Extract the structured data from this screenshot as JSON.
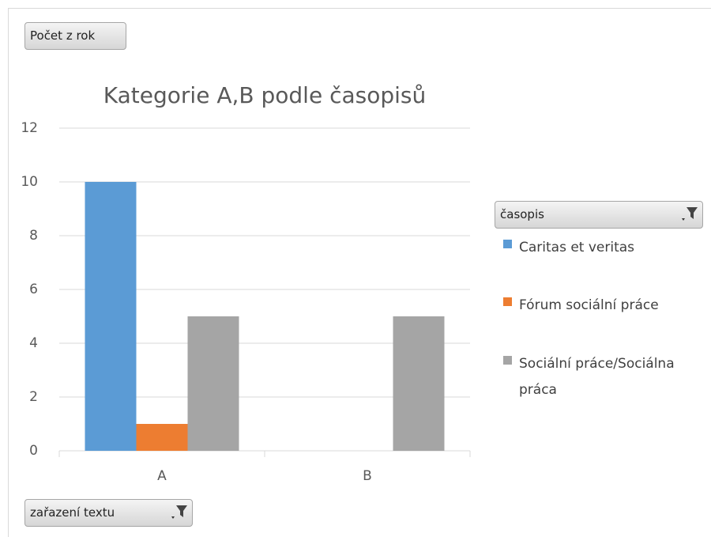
{
  "chart_data": {
    "type": "bar",
    "title": "Kategorie A,B podle časopisů",
    "value_field_button": "Počet z rok",
    "legend_field_button": "časopis",
    "axis_field_button": "zařazení textu",
    "categories": [
      "A",
      "B"
    ],
    "series": [
      {
        "name": "Caritas et veritas",
        "color": "#5b9bd5",
        "values": [
          10,
          null
        ]
      },
      {
        "name": "Fórum sociální práce",
        "color": "#ed7d31",
        "values": [
          1,
          null
        ]
      },
      {
        "name": "Sociální práce/Sociálna práca",
        "color": "#a5a5a5",
        "values": [
          5,
          5
        ]
      }
    ],
    "ylim": [
      0,
      12
    ],
    "yticks": [
      0,
      2,
      4,
      6,
      8,
      10,
      12
    ],
    "grid": true,
    "legend": "right"
  }
}
